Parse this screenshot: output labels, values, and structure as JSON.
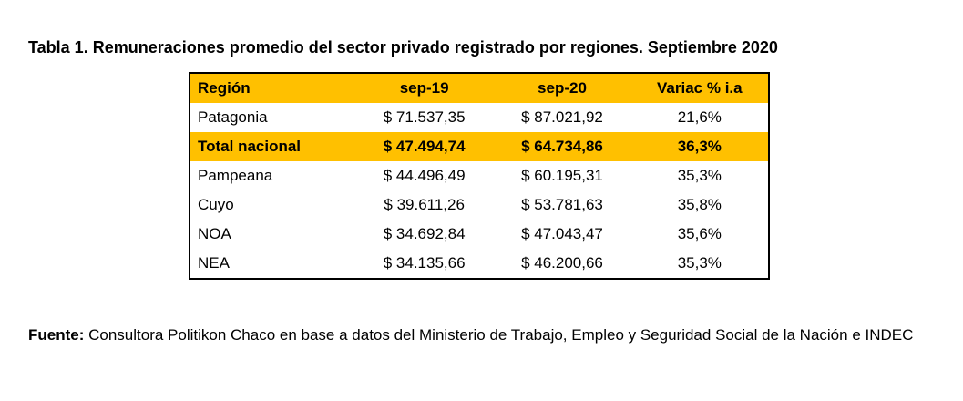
{
  "title": "Tabla 1. Remuneraciones promedio del sector privado registrado por regiones. Septiembre 2020",
  "colors": {
    "header_bg": "#FFC000",
    "highlight_bg": "#FFC000"
  },
  "table": {
    "headers": [
      "Región",
      "sep-19",
      "sep-20",
      "Variac % i.a"
    ],
    "rows": [
      {
        "region": "Patagonia",
        "sep19": "$ 71.537,35",
        "sep20": "$ 87.021,92",
        "variac": "21,6%",
        "highlight": false
      },
      {
        "region": "Total nacional",
        "sep19": "$ 47.494,74",
        "sep20": "$ 64.734,86",
        "variac": "36,3%",
        "highlight": true
      },
      {
        "region": "Pampeana",
        "sep19": "$ 44.496,49",
        "sep20": "$ 60.195,31",
        "variac": "35,3%",
        "highlight": false
      },
      {
        "region": "Cuyo",
        "sep19": "$ 39.611,26",
        "sep20": "$ 53.781,63",
        "variac": "35,8%",
        "highlight": false
      },
      {
        "region": "NOA",
        "sep19": "$ 34.692,84",
        "sep20": "$ 47.043,47",
        "variac": "35,6%",
        "highlight": false
      },
      {
        "region": "NEA",
        "sep19": "$ 34.135,66",
        "sep20": "$ 46.200,66",
        "variac": "35,3%",
        "highlight": false
      }
    ]
  },
  "source": {
    "label": "Fuente:",
    "text": " Consultora Politikon Chaco en base a datos del Ministerio de Trabajo, Empleo y Seguridad Social de la Nación e INDEC"
  }
}
